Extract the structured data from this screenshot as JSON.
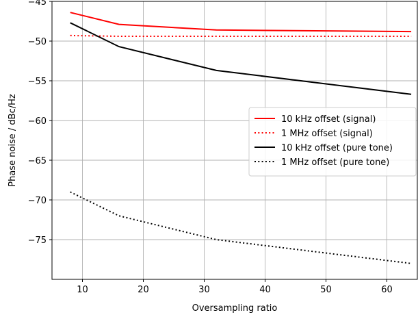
{
  "chart_data": {
    "type": "line",
    "title": "",
    "xlabel": "Oversampling ratio",
    "ylabel": "Phase noise / dBc/Hz",
    "xlim": [
      5,
      65
    ],
    "ylim": [
      -80,
      -45
    ],
    "xticks": [
      10,
      20,
      30,
      40,
      50,
      60
    ],
    "yticks": [
      -45,
      -50,
      -55,
      -60,
      -65,
      -70,
      -75
    ],
    "xtick_labels": [
      "10",
      "20",
      "30",
      "40",
      "50",
      "60"
    ],
    "ytick_labels": [
      "−45",
      "−50",
      "−55",
      "−60",
      "−65",
      "−70",
      "−75"
    ],
    "grid": true,
    "legend_position": "center-right",
    "series": [
      {
        "name": "10 kHz offset (signal)",
        "color": "#ff0000",
        "style": "solid",
        "x": [
          8,
          16,
          32,
          64
        ],
        "y": [
          -46.4,
          -47.9,
          -48.6,
          -48.8
        ]
      },
      {
        "name": "1 MHz offset (signal)",
        "color": "#ff0000",
        "style": "dotted",
        "x": [
          8,
          16,
          32,
          64
        ],
        "y": [
          -49.3,
          -49.4,
          -49.4,
          -49.4
        ]
      },
      {
        "name": "10 kHz offset (pure tone)",
        "color": "#000000",
        "style": "solid",
        "x": [
          8,
          16,
          32,
          64
        ],
        "y": [
          -47.7,
          -50.7,
          -53.7,
          -56.7
        ]
      },
      {
        "name": "1 MHz offset (pure tone)",
        "color": "#000000",
        "style": "dotted",
        "x": [
          8,
          16,
          32,
          64
        ],
        "y": [
          -69.0,
          -72.0,
          -75.0,
          -78.0
        ]
      }
    ]
  }
}
